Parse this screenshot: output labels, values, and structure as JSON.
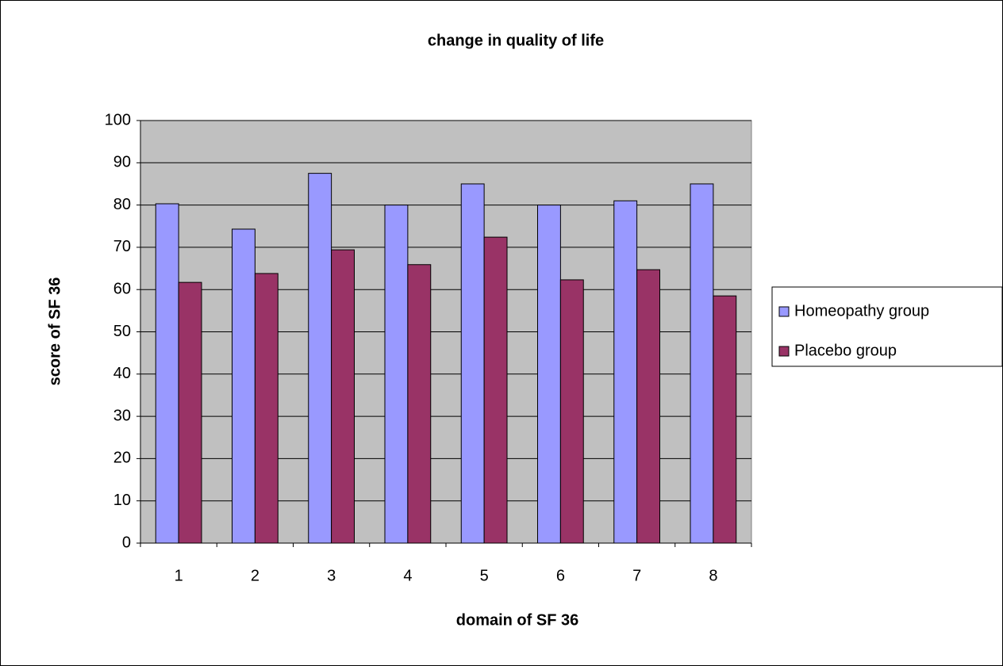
{
  "chart_data": {
    "type": "bar",
    "title": "change in quality of life",
    "xlabel": "domain of SF 36",
    "ylabel": "score of SF 36",
    "categories": [
      "1",
      "2",
      "3",
      "4",
      "5",
      "6",
      "7",
      "8"
    ],
    "series": [
      {
        "name": "Homeopathy group",
        "color": "#9999ff",
        "values": [
          80.3,
          74.3,
          87.5,
          80,
          85,
          80,
          81,
          85
        ]
      },
      {
        "name": "Placebo group",
        "color": "#993366",
        "values": [
          61.7,
          63.8,
          69.4,
          65.9,
          72.4,
          62.3,
          64.7,
          58.5
        ]
      }
    ],
    "ylim": [
      0,
      100
    ],
    "yticks": [
      0,
      10,
      20,
      30,
      40,
      50,
      60,
      70,
      80,
      90,
      100
    ],
    "grid": true,
    "legend": "right"
  }
}
